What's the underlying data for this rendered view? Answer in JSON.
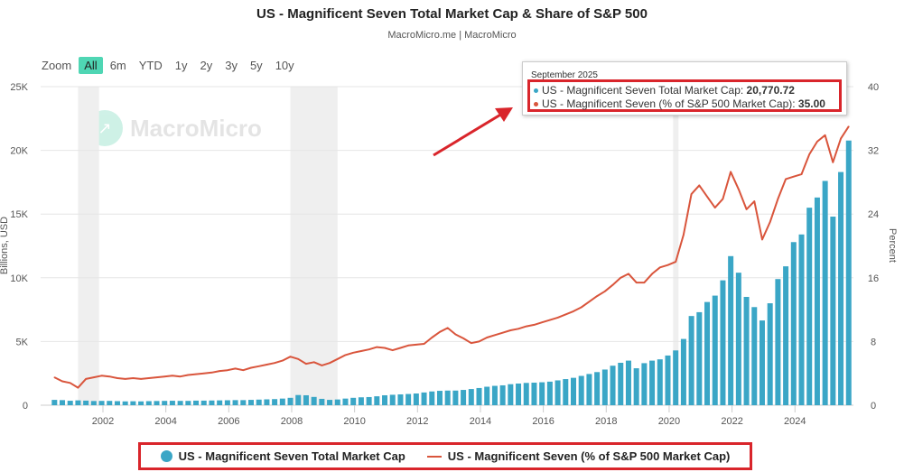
{
  "header": {
    "title": "US - Magnificent Seven Total Market Cap & Share of S&P 500",
    "subtitle": "MacroMicro.me | MacroMicro"
  },
  "zoom": {
    "label": "Zoom",
    "options": [
      "All",
      "6m",
      "YTD",
      "1y",
      "2y",
      "3y",
      "5y",
      "10y"
    ],
    "selected": "All"
  },
  "watermark": "MacroMicro",
  "tooltip": {
    "date": "September 2025",
    "rows": [
      {
        "label": "US - Magnificent Seven Total Market Cap: ",
        "value": "20,770.72",
        "color": "#3aa6c6"
      },
      {
        "label": "US - Magnificent Seven (% of S&P 500 Market Cap): ",
        "value": "35.00",
        "color": "#d9553c"
      }
    ]
  },
  "colors": {
    "bars": "#3aa6c6",
    "line": "#d9553c",
    "highlight": "#d9252b",
    "recession": "#efefef"
  },
  "chart_data": {
    "type": "bar+line",
    "title": "US - Magnificent Seven Total Market Cap & Share of S&P 500",
    "xlabel": "",
    "ylabel_left": "Billions, USD",
    "ylabel_right": "Percent",
    "ylim_left": [
      0,
      25000
    ],
    "ylim_right": [
      0,
      40
    ],
    "yticks_left": [
      "0",
      "5K",
      "10K",
      "15K",
      "20K",
      "25K"
    ],
    "yticks_right": [
      "0",
      "8",
      "16",
      "24",
      "32",
      "40"
    ],
    "xticks": [
      "2002",
      "2004",
      "2006",
      "2008",
      "2010",
      "2012",
      "2014",
      "2016",
      "2018",
      "2020",
      "2022",
      "2024"
    ],
    "grid": true,
    "legend_position": "bottom",
    "shaded_periods": [
      [
        "2001-03",
        "2001-11"
      ],
      [
        "2007-12",
        "2009-06"
      ],
      [
        "2020-02",
        "2020-04"
      ]
    ],
    "dates": [
      "2000-06",
      "2000-09",
      "2000-12",
      "2001-03",
      "2001-06",
      "2001-09",
      "2001-12",
      "2002-03",
      "2002-06",
      "2002-09",
      "2002-12",
      "2003-03",
      "2003-06",
      "2003-09",
      "2003-12",
      "2004-03",
      "2004-06",
      "2004-09",
      "2004-12",
      "2005-03",
      "2005-06",
      "2005-09",
      "2005-12",
      "2006-03",
      "2006-06",
      "2006-09",
      "2006-12",
      "2007-03",
      "2007-06",
      "2007-09",
      "2007-12",
      "2008-03",
      "2008-06",
      "2008-09",
      "2008-12",
      "2009-03",
      "2009-06",
      "2009-09",
      "2009-12",
      "2010-03",
      "2010-06",
      "2010-09",
      "2010-12",
      "2011-03",
      "2011-06",
      "2011-09",
      "2011-12",
      "2012-03",
      "2012-06",
      "2012-09",
      "2012-12",
      "2013-03",
      "2013-06",
      "2013-09",
      "2013-12",
      "2014-03",
      "2014-06",
      "2014-09",
      "2014-12",
      "2015-03",
      "2015-06",
      "2015-09",
      "2015-12",
      "2016-03",
      "2016-06",
      "2016-09",
      "2016-12",
      "2017-03",
      "2017-06",
      "2017-09",
      "2017-12",
      "2018-03",
      "2018-06",
      "2018-09",
      "2018-12",
      "2019-03",
      "2019-06",
      "2019-09",
      "2019-12",
      "2020-03",
      "2020-06",
      "2020-09",
      "2020-12",
      "2021-03",
      "2021-06",
      "2021-09",
      "2021-12",
      "2022-03",
      "2022-06",
      "2022-09",
      "2022-12",
      "2023-03",
      "2023-06",
      "2023-09",
      "2023-12",
      "2024-03",
      "2024-06",
      "2024-09",
      "2024-12",
      "2025-03",
      "2025-06",
      "2025-09"
    ],
    "series": [
      {
        "name": "US - Magnificent Seven Total Market Cap",
        "type": "bar",
        "axis": "left",
        "values": [
          420,
          400,
          350,
          380,
          360,
          330,
          340,
          340,
          320,
          300,
          310,
          300,
          320,
          330,
          340,
          350,
          340,
          340,
          360,
          360,
          370,
          380,
          390,
          400,
          400,
          420,
          440,
          460,
          480,
          520,
          580,
          800,
          780,
          650,
          500,
          420,
          450,
          520,
          580,
          620,
          640,
          700,
          780,
          820,
          850,
          880,
          920,
          1000,
          1080,
          1130,
          1150,
          1150,
          1200,
          1270,
          1350,
          1450,
          1520,
          1560,
          1650,
          1700,
          1750,
          1770,
          1800,
          1850,
          1950,
          2050,
          2150,
          2300,
          2450,
          2600,
          2800,
          3100,
          3330,
          3500,
          2900,
          3300,
          3500,
          3600,
          3900,
          4300,
          5200,
          7000,
          7300,
          8100,
          8600,
          9800,
          11700,
          10400,
          8500,
          7700,
          6650,
          8000,
          9900,
          10900,
          12800,
          13400,
          15500,
          16300,
          17600,
          14800,
          18300,
          20770.72
        ]
      },
      {
        "name": "US - Magnificent Seven (% of S&P 500 Market Cap)",
        "type": "line",
        "axis": "right",
        "values": [
          3.5,
          3.0,
          2.8,
          2.2,
          3.3,
          3.5,
          3.7,
          3.6,
          3.4,
          3.3,
          3.4,
          3.3,
          3.4,
          3.5,
          3.6,
          3.7,
          3.6,
          3.8,
          3.9,
          4.0,
          4.1,
          4.3,
          4.4,
          4.6,
          4.4,
          4.7,
          4.9,
          5.1,
          5.3,
          5.6,
          6.1,
          5.8,
          5.2,
          5.4,
          5.0,
          5.3,
          5.8,
          6.3,
          6.6,
          6.8,
          7.0,
          7.3,
          7.2,
          6.9,
          7.2,
          7.5,
          7.6,
          7.7,
          8.5,
          9.2,
          9.7,
          8.9,
          8.4,
          7.8,
          8.0,
          8.5,
          8.8,
          9.1,
          9.4,
          9.6,
          9.9,
          10.1,
          10.4,
          10.7,
          11.0,
          11.4,
          11.8,
          12.3,
          13.0,
          13.7,
          14.3,
          15.1,
          16.0,
          16.5,
          15.4,
          15.4,
          16.5,
          17.3,
          17.6,
          18.0,
          21.4,
          26.5,
          27.6,
          26.2,
          24.8,
          25.9,
          29.3,
          27.1,
          24.6,
          25.6,
          20.8,
          23.0,
          25.9,
          28.4,
          28.7,
          29.0,
          31.5,
          33.1,
          33.9,
          30.5,
          33.5,
          35.0
        ]
      }
    ]
  }
}
